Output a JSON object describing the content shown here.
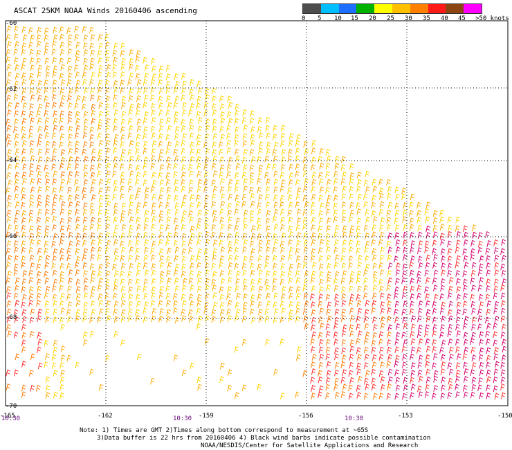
{
  "header": {
    "title": "ASCAT 25KM NOAA Winds 20160406 ascending"
  },
  "legend": {
    "colors": [
      "#4d4d4d",
      "#00bfff",
      "#1f6fff",
      "#00b200",
      "#ffff00",
      "#ffc000",
      "#ff8000",
      "#ff1a1a",
      "#8b4513",
      "#ff00ff",
      "#7f00c0"
    ],
    "labels": [
      "0",
      "5",
      "10",
      "15",
      "20",
      "25",
      "30",
      "35",
      "40",
      "45",
      ">50 knots"
    ]
  },
  "map": {
    "latitudes": [
      "-60",
      "-62",
      "-64",
      "-66",
      "-68",
      "-70"
    ],
    "longitudes": [
      "-165",
      "-162",
      "-159",
      "-156",
      "-153",
      "-150"
    ],
    "times": [
      "10:30",
      "10:30",
      "10:30"
    ],
    "barb_colors": {
      "light": "#ffd400",
      "mid": "#ffaa00",
      "orange": "#ff7a00",
      "red": "#ff2d2d",
      "magenta": "#d4006a"
    }
  },
  "notes": {
    "line1": "Note: 1) Times are GMT 2)Times along bottom correspond to measurement at ~65S",
    "line2": "3)Data buffer is 22 hrs from 20160406 4) Black wind barbs indicate possible contamination",
    "line3": "NOAA/NESDIS/Center for Satellite Applications and Research"
  }
}
